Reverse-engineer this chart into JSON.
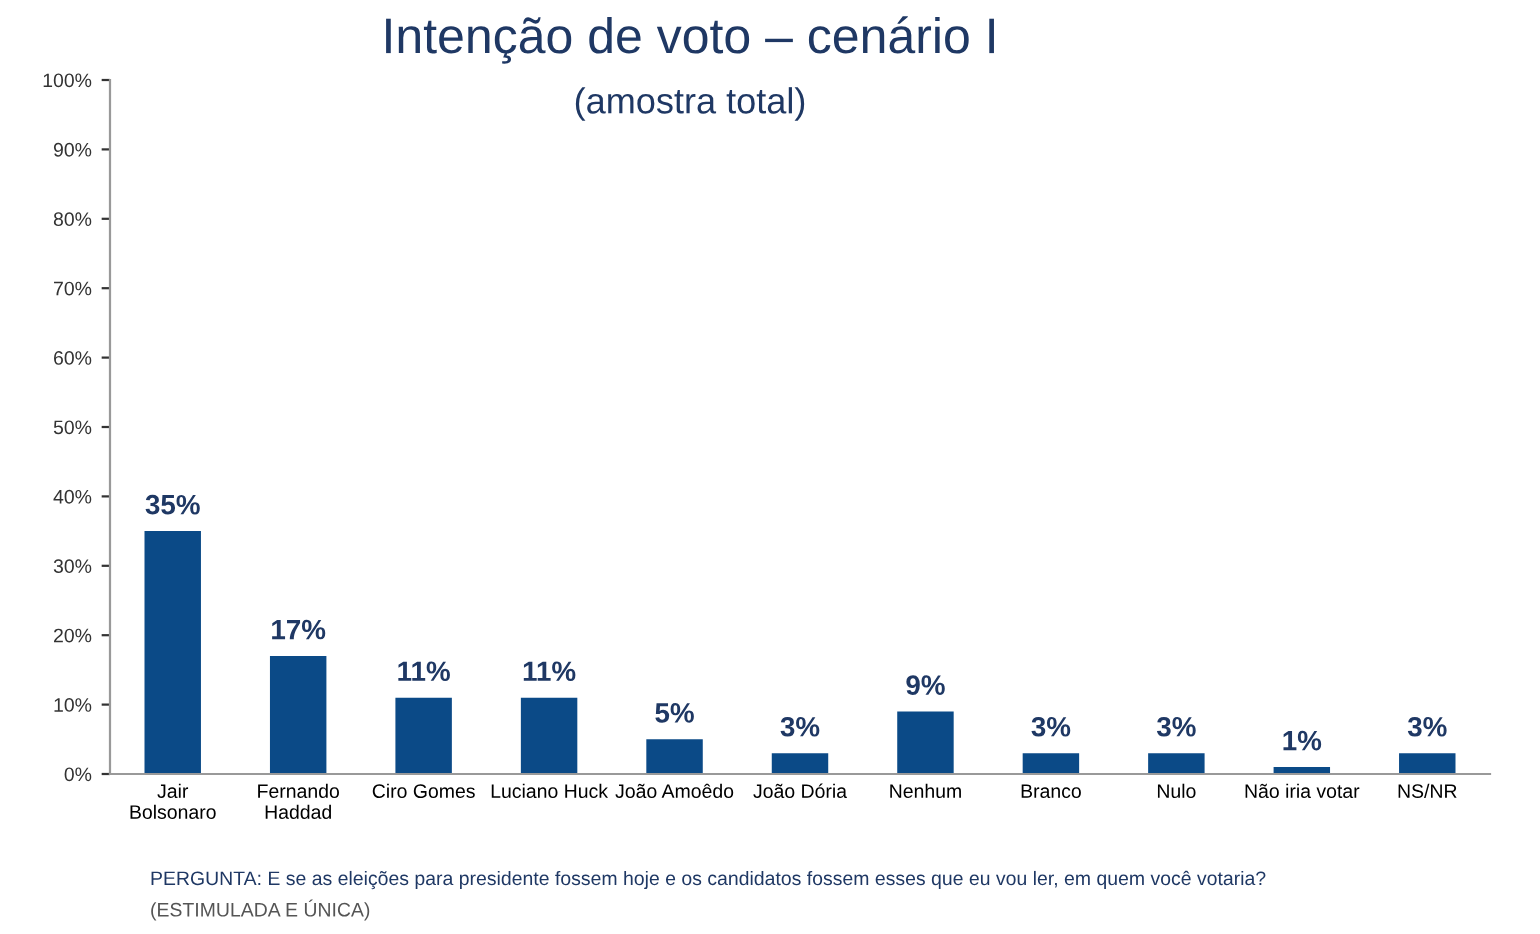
{
  "chart_data": {
    "type": "bar",
    "title": "Intenção de voto – cenário I",
    "subtitle": "(amostra total)",
    "categories": [
      "Jair\nBolsonaro",
      "Fernando\nHaddad",
      "Ciro Gomes",
      "Luciano Huck",
      "João Amoêdo",
      "João Dória",
      "Nenhum",
      "Branco",
      "Nulo",
      "Não iria votar",
      "NS/NR"
    ],
    "values": [
      35,
      17,
      11,
      11,
      5,
      3,
      9,
      3,
      3,
      1,
      3
    ],
    "value_labels": [
      "35%",
      "17%",
      "11%",
      "11%",
      "5%",
      "3%",
      "9%",
      "3%",
      "3%",
      "1%",
      "3%"
    ],
    "color": "#0b4a87",
    "ylim": [
      0,
      100
    ],
    "yticks": [
      {
        "value": 0,
        "label": "0%"
      },
      {
        "value": 10,
        "label": "10%"
      },
      {
        "value": 20,
        "label": "20%"
      },
      {
        "value": 30,
        "label": "30%"
      },
      {
        "value": 40,
        "label": "40%"
      },
      {
        "value": 50,
        "label": "50%"
      },
      {
        "value": 60,
        "label": "60%"
      },
      {
        "value": 70,
        "label": "70%"
      },
      {
        "value": 80,
        "label": "80%"
      },
      {
        "value": 90,
        "label": "90%"
      },
      {
        "value": 100,
        "label": "100%"
      }
    ],
    "grid": false,
    "annotations": [
      "PERGUNTA: E se as eleições para presidente fossem hoje e os candidatos fossem esses que eu vou ler, em quem você votaria?",
      "(ESTIMULADA E ÚNICA)"
    ]
  }
}
